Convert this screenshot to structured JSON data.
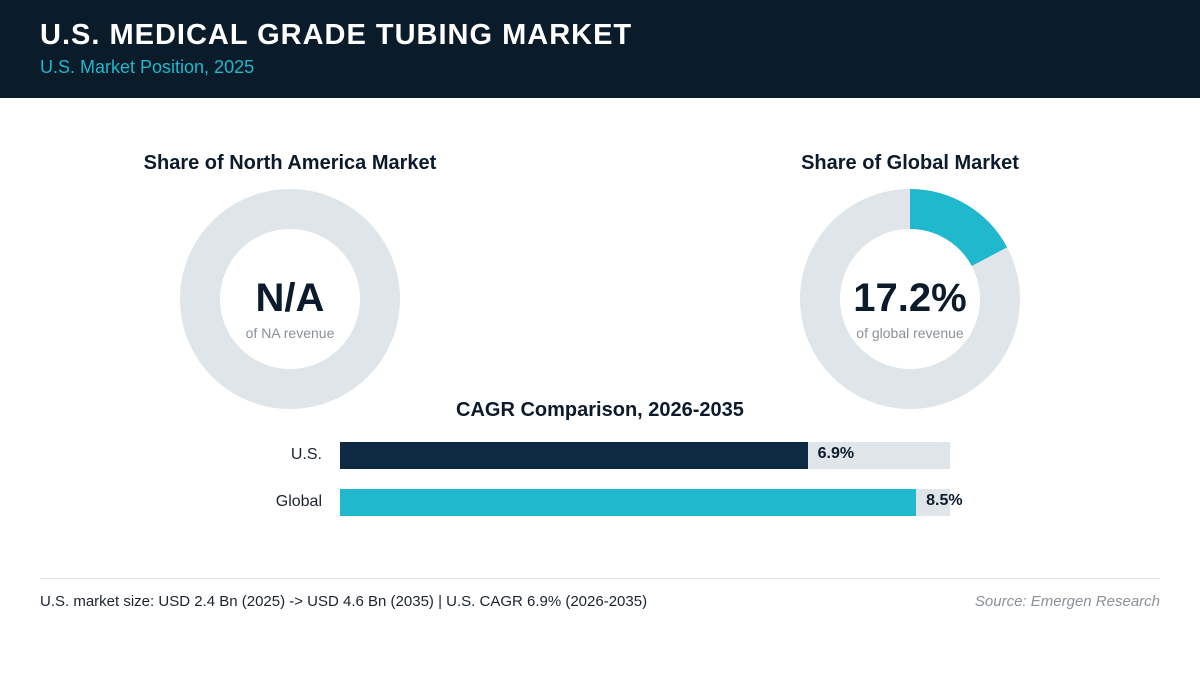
{
  "header": {
    "title": "U.S. MEDICAL GRADE TUBING MARKET",
    "subtitle": "U.S. Market Position, 2025"
  },
  "colors": {
    "header_bg": "#0a1b29",
    "accent_teal": "#1fb8cd",
    "navy": "#0e2a42",
    "track_gray": "#e0e5e9"
  },
  "chart_data": [
    {
      "type": "pie",
      "title": "Share of North America Market",
      "value_label": "N/A",
      "caption": "of NA revenue",
      "share_percent": null
    },
    {
      "type": "pie",
      "title": "Share of Global Market",
      "value_label": "17.2%",
      "caption": "of global revenue",
      "share_percent": 17.2
    },
    {
      "type": "bar",
      "title": "CAGR Comparison, 2026-2035",
      "categories": [
        "U.S.",
        "Global"
      ],
      "values": [
        6.9,
        8.5
      ],
      "value_labels": [
        "6.9%",
        "8.5%"
      ],
      "colors": [
        "#0e2a42",
        "#1fb8cd"
      ],
      "orientation": "horizontal",
      "xlim": [
        0,
        9.0
      ]
    }
  ],
  "footer": {
    "note": "U.S. market size: USD 2.4 Bn (2025) -> USD 4.6 Bn (2035)  |  U.S. CAGR 6.9% (2026-2035)",
    "source": "Source: Emergen Research"
  }
}
